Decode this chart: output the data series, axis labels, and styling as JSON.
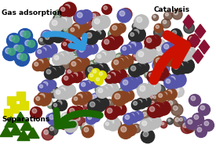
{
  "bg_color": "#ffffff",
  "labels": {
    "gas_adsorption": "Gas adsorption",
    "catalysis": "Catalysis",
    "separations": "Separations"
  },
  "label_fontsize": 6.5,
  "label_fontweight": "bold",
  "blue_arrow_color": "#3399dd",
  "red_arrow_color": "#cc1100",
  "green_arrow_color": "#1a6600",
  "gas_sphere_color1": "#2255aa",
  "gas_sphere_color2": "#44aa77",
  "catalysis_diamond_color": "#881133",
  "sep_yellow_color": "#dddd00",
  "sep_green_color": "#226600",
  "purple_sphere_color": "#664477",
  "framework_colors": [
    "#2a2a2a",
    "#771111",
    "#5555aa",
    "#cccccc",
    "#884422",
    "#446644"
  ]
}
